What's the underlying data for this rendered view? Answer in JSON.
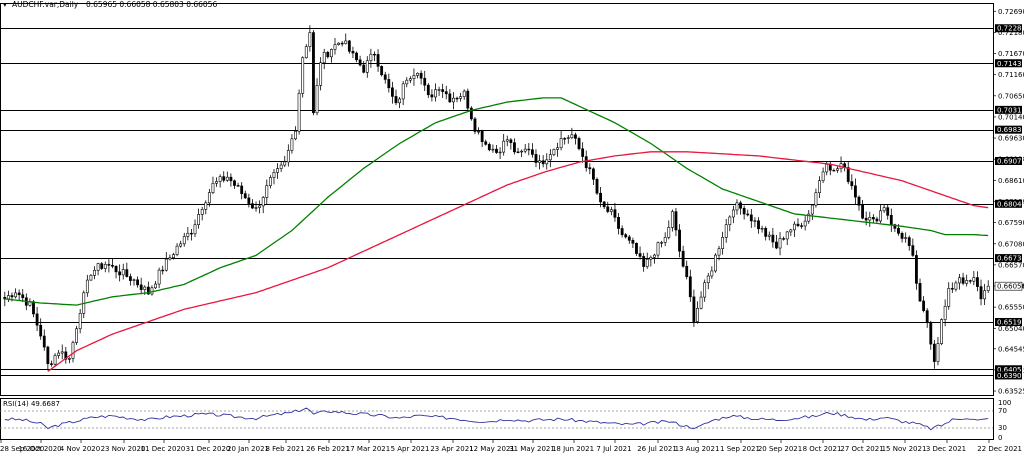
{
  "header": {
    "symbol": "AUDCHF.var,Daily",
    "quote": "0.65965 0.66058 0.65803 0.66056"
  },
  "rsi_header": {
    "label": "RSI(14) 49.6687"
  },
  "colors": {
    "background": "#ffffff",
    "bull_candle": "#ffffff",
    "bear_candle": "#000000",
    "ma_fast": "#008000",
    "ma_slow": "#e8173d",
    "rsi_line": "#3030a0",
    "level_line": "#000000"
  },
  "chart_data": [
    {
      "type": "candlestick",
      "title": "AUDCHF.var,Daily",
      "x_ticks": [
        "28 Sep 2020",
        "16 Oct 2020",
        "4 Nov 2020",
        "23 Nov 2020",
        "11 Dec 2020",
        "31 Dec 2020",
        "20 Jan 2021",
        "8 Feb 2021",
        "26 Feb 2021",
        "17 Mar 2021",
        "5 Apr 2021",
        "23 Apr 2021",
        "12 May 2021",
        "31 May 2021",
        "18 Jun 2021",
        "7 Jul 2021",
        "26 Jul 2021",
        "13 Aug 2021",
        "1 Sep 2021",
        "20 Sep 2021",
        "8 Oct 2021",
        "27 Oct 2021",
        "15 Nov 2021",
        "3 Dec 2021",
        "22 Dec 2021"
      ],
      "y_ticks": [
        "0.72690",
        "0.72180",
        "0.71670",
        "0.71160",
        "0.70650",
        "0.70140",
        "0.69630",
        "0.69120",
        "0.68610",
        "0.68100",
        "0.67590",
        "0.67080",
        "0.66570",
        "0.66060",
        "0.65550",
        "0.65040",
        "0.64545",
        "0.64035",
        "0.63525"
      ],
      "ylim": [
        0.6343,
        0.7289
      ],
      "levels": [
        0.72281,
        0.71436,
        0.70311,
        0.69833,
        0.69077,
        0.68044,
        0.66734,
        0.65192,
        0.64051,
        0.63902
      ],
      "last_price": 0.66056,
      "anchors": [
        [
          0,
          0.6575
        ],
        [
          3,
          0.6595
        ],
        [
          7,
          0.656
        ],
        [
          10,
          0.649
        ],
        [
          12,
          0.6415
        ],
        [
          15,
          0.645
        ],
        [
          18,
          0.643
        ],
        [
          21,
          0.655
        ],
        [
          24,
          0.664
        ],
        [
          28,
          0.666
        ],
        [
          32,
          0.664
        ],
        [
          36,
          0.662
        ],
        [
          40,
          0.659
        ],
        [
          44,
          0.665
        ],
        [
          48,
          0.67
        ],
        [
          52,
          0.674
        ],
        [
          55,
          0.68
        ],
        [
          58,
          0.685
        ],
        [
          62,
          0.687
        ],
        [
          66,
          0.683
        ],
        [
          70,
          0.679
        ],
        [
          74,
          0.686
        ],
        [
          78,
          0.69
        ],
        [
          81,
          0.699
        ],
        [
          83,
          0.716
        ],
        [
          85,
          0.722
        ],
        [
          86,
          0.702
        ],
        [
          88,
          0.715
        ],
        [
          91,
          0.718
        ],
        [
          94,
          0.72
        ],
        [
          97,
          0.716
        ],
        [
          100,
          0.713
        ],
        [
          103,
          0.717
        ],
        [
          106,
          0.71
        ],
        [
          109,
          0.704
        ],
        [
          112,
          0.711
        ],
        [
          115,
          0.713
        ],
        [
          118,
          0.706
        ],
        [
          121,
          0.709
        ],
        [
          124,
          0.706
        ],
        [
          128,
          0.707
        ],
        [
          131,
          0.699
        ],
        [
          134,
          0.695
        ],
        [
          137,
          0.693
        ],
        [
          140,
          0.696
        ],
        [
          143,
          0.692
        ],
        [
          146,
          0.694
        ],
        [
          149,
          0.69
        ],
        [
          152,
          0.693
        ],
        [
          155,
          0.696
        ],
        [
          158,
          0.697
        ],
        [
          161,
          0.692
        ],
        [
          164,
          0.686
        ],
        [
          166,
          0.68
        ],
        [
          169,
          0.678
        ],
        [
          172,
          0.673
        ],
        [
          175,
          0.67
        ],
        [
          178,
          0.665
        ],
        [
          181,
          0.669
        ],
        [
          184,
          0.672
        ],
        [
          186,
          0.678
        ],
        [
          188,
          0.669
        ],
        [
          190,
          0.662
        ],
        [
          192,
          0.653
        ],
        [
          194,
          0.658
        ],
        [
          197,
          0.665
        ],
        [
          200,
          0.673
        ],
        [
          203,
          0.68
        ],
        [
          206,
          0.679
        ],
        [
          209,
          0.676
        ],
        [
          212,
          0.673
        ],
        [
          215,
          0.67
        ],
        [
          218,
          0.674
        ],
        [
          221,
          0.675
        ],
        [
          224,
          0.678
        ],
        [
          227,
          0.686
        ],
        [
          229,
          0.691
        ],
        [
          231,
          0.688
        ],
        [
          233,
          0.69
        ],
        [
          236,
          0.685
        ],
        [
          239,
          0.678
        ],
        [
          242,
          0.676
        ],
        [
          245,
          0.68
        ],
        [
          248,
          0.674
        ],
        [
          251,
          0.672
        ],
        [
          253,
          0.667
        ],
        [
          255,
          0.656
        ],
        [
          257,
          0.652
        ],
        [
          259,
          0.643
        ],
        [
          261,
          0.652
        ],
        [
          263,
          0.659
        ],
        [
          266,
          0.663
        ],
        [
          268,
          0.661
        ],
        [
          270,
          0.662
        ],
        [
          272,
          0.658
        ],
        [
          274,
          0.6606
        ]
      ],
      "ma_fast_anchors": [
        [
          0,
          0.6575
        ],
        [
          10,
          0.6565
        ],
        [
          20,
          0.656
        ],
        [
          30,
          0.658
        ],
        [
          40,
          0.659
        ],
        [
          50,
          0.661
        ],
        [
          60,
          0.665
        ],
        [
          70,
          0.668
        ],
        [
          80,
          0.674
        ],
        [
          90,
          0.682
        ],
        [
          100,
          0.689
        ],
        [
          110,
          0.695
        ],
        [
          120,
          0.7
        ],
        [
          130,
          0.703
        ],
        [
          140,
          0.705
        ],
        [
          150,
          0.706
        ],
        [
          155,
          0.706
        ],
        [
          160,
          0.704
        ],
        [
          170,
          0.7
        ],
        [
          180,
          0.695
        ],
        [
          190,
          0.689
        ],
        [
          200,
          0.684
        ],
        [
          210,
          0.681
        ],
        [
          220,
          0.678
        ],
        [
          230,
          0.677
        ],
        [
          240,
          0.676
        ],
        [
          250,
          0.675
        ],
        [
          258,
          0.674
        ],
        [
          262,
          0.673
        ],
        [
          270,
          0.673
        ],
        [
          274,
          0.6728
        ]
      ],
      "ma_slow_anchors": [
        [
          12,
          0.64
        ],
        [
          20,
          0.645
        ],
        [
          30,
          0.649
        ],
        [
          40,
          0.652
        ],
        [
          50,
          0.655
        ],
        [
          60,
          0.657
        ],
        [
          70,
          0.659
        ],
        [
          80,
          0.662
        ],
        [
          90,
          0.665
        ],
        [
          100,
          0.669
        ],
        [
          110,
          0.673
        ],
        [
          120,
          0.677
        ],
        [
          130,
          0.681
        ],
        [
          140,
          0.685
        ],
        [
          150,
          0.688
        ],
        [
          160,
          0.6905
        ],
        [
          170,
          0.692
        ],
        [
          180,
          0.693
        ],
        [
          190,
          0.693
        ],
        [
          200,
          0.6925
        ],
        [
          210,
          0.692
        ],
        [
          220,
          0.691
        ],
        [
          230,
          0.69
        ],
        [
          240,
          0.688
        ],
        [
          250,
          0.686
        ],
        [
          260,
          0.683
        ],
        [
          270,
          0.68
        ],
        [
          274,
          0.6795
        ]
      ]
    },
    {
      "type": "line",
      "title": "RSI(14)",
      "y_ticks": [
        "100",
        "70",
        "30",
        "0"
      ],
      "ylim": [
        0,
        100
      ],
      "rsi_anchors": [
        [
          0,
          50
        ],
        [
          5,
          48
        ],
        [
          10,
          38
        ],
        [
          12,
          27
        ],
        [
          15,
          35
        ],
        [
          20,
          45
        ],
        [
          25,
          55
        ],
        [
          30,
          58
        ],
        [
          35,
          52
        ],
        [
          40,
          48
        ],
        [
          45,
          55
        ],
        [
          50,
          58
        ],
        [
          55,
          62
        ],
        [
          60,
          60
        ],
        [
          65,
          55
        ],
        [
          70,
          52
        ],
        [
          75,
          60
        ],
        [
          80,
          66
        ],
        [
          84,
          78
        ],
        [
          86,
          62
        ],
        [
          90,
          70
        ],
        [
          95,
          66
        ],
        [
          100,
          62
        ],
        [
          105,
          58
        ],
        [
          110,
          52
        ],
        [
          115,
          58
        ],
        [
          120,
          55
        ],
        [
          125,
          52
        ],
        [
          130,
          46
        ],
        [
          135,
          44
        ],
        [
          140,
          50
        ],
        [
          145,
          46
        ],
        [
          150,
          48
        ],
        [
          155,
          50
        ],
        [
          160,
          46
        ],
        [
          165,
          42
        ],
        [
          170,
          38
        ],
        [
          175,
          36
        ],
        [
          180,
          40
        ],
        [
          185,
          44
        ],
        [
          190,
          32
        ],
        [
          193,
          28
        ],
        [
          197,
          46
        ],
        [
          202,
          58
        ],
        [
          206,
          54
        ],
        [
          210,
          50
        ],
        [
          215,
          48
        ],
        [
          220,
          52
        ],
        [
          225,
          56
        ],
        [
          230,
          66
        ],
        [
          235,
          58
        ],
        [
          240,
          48
        ],
        [
          245,
          54
        ],
        [
          250,
          44
        ],
        [
          254,
          38
        ],
        [
          258,
          26
        ],
        [
          261,
          34
        ],
        [
          264,
          48
        ],
        [
          268,
          54
        ],
        [
          271,
          46
        ],
        [
          274,
          50
        ]
      ]
    }
  ]
}
